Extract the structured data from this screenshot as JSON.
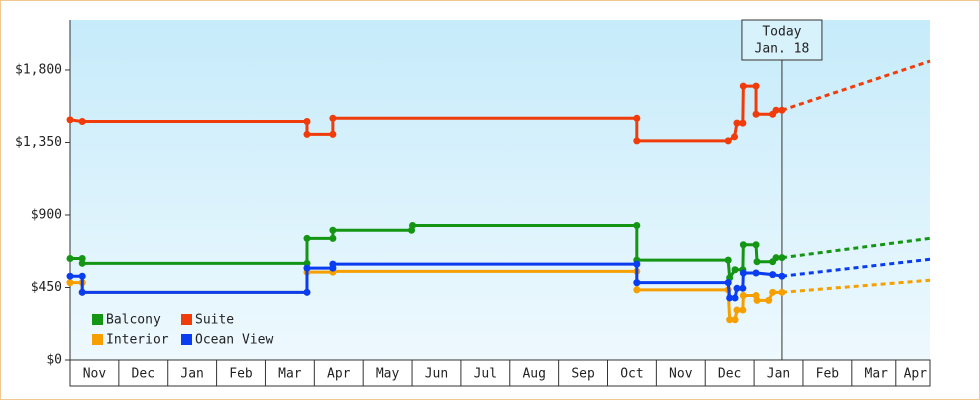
{
  "chart_data": {
    "type": "step-line",
    "ylim": [
      0,
      2110
    ],
    "yticks": [
      {
        "value": 0,
        "label": "$0"
      },
      {
        "value": 450,
        "label": "$450"
      },
      {
        "value": 900,
        "label": "$900"
      },
      {
        "value": 1350,
        "label": "$1,350"
      },
      {
        "value": 1800,
        "label": "$1,800"
      }
    ],
    "xlim": [
      0,
      17.6
    ],
    "xticks": [
      {
        "value": 0.5,
        "label": "Nov"
      },
      {
        "value": 1.5,
        "label": "Dec"
      },
      {
        "value": 2.5,
        "label": "Jan"
      },
      {
        "value": 3.5,
        "label": "Feb"
      },
      {
        "value": 4.5,
        "label": "Mar"
      },
      {
        "value": 5.5,
        "label": "Apr"
      },
      {
        "value": 6.5,
        "label": "May"
      },
      {
        "value": 7.5,
        "label": "Jun"
      },
      {
        "value": 8.5,
        "label": "Jul"
      },
      {
        "value": 9.5,
        "label": "Aug"
      },
      {
        "value": 10.5,
        "label": "Sep"
      },
      {
        "value": 11.5,
        "label": "Oct"
      },
      {
        "value": 12.5,
        "label": "Nov"
      },
      {
        "value": 13.5,
        "label": "Dec"
      },
      {
        "value": 14.5,
        "label": "Jan"
      },
      {
        "value": 15.5,
        "label": "Feb"
      },
      {
        "value": 16.5,
        "label": "Mar"
      },
      {
        "value": 17.3,
        "label": "Apr"
      }
    ],
    "legend": "lower left",
    "annotation": {
      "x": 14.57,
      "lines": [
        "Today",
        "Jan. 18"
      ]
    },
    "series": [
      {
        "name": "Balcony",
        "color": "#149614",
        "x": [
          0,
          0.25,
          0.25,
          4.85,
          4.85,
          5.38,
          5.38,
          6.99,
          7.01,
          11.6,
          11.6,
          13.47,
          13.5,
          13.61,
          13.77,
          13.78,
          14.04,
          14.06,
          14.38,
          14.45,
          14.57
        ],
        "values": [
          630,
          630,
          600,
          600,
          755,
          755,
          805,
          805,
          835,
          835,
          620,
          620,
          510,
          560,
          560,
          715,
          715,
          610,
          610,
          635,
          635
        ],
        "forecast_x": [
          14.57,
          17.6
        ],
        "forecast_values": [
          635,
          755
        ]
      },
      {
        "name": "Suite",
        "color": "#f03c0a",
        "x": [
          0,
          0.25,
          4.85,
          4.85,
          5.38,
          5.38,
          11.6,
          11.6,
          13.47,
          13.6,
          13.65,
          13.77,
          13.78,
          14.04,
          14.04,
          14.38,
          14.45,
          14.57
        ],
        "values": [
          1490,
          1480,
          1480,
          1400,
          1400,
          1500,
          1500,
          1360,
          1360,
          1385,
          1470,
          1470,
          1700,
          1700,
          1525,
          1525,
          1550,
          1550
        ],
        "forecast_x": [
          14.57,
          17.6
        ],
        "forecast_values": [
          1550,
          1855
        ]
      },
      {
        "name": "Interior",
        "color": "#f5a000",
        "x": [
          0,
          0.25,
          0.25,
          4.85,
          4.85,
          5.38,
          5.38,
          11.6,
          11.6,
          13.47,
          13.5,
          13.61,
          13.65,
          13.77,
          13.78,
          14.04,
          14.06,
          14.3,
          14.38,
          14.57
        ],
        "values": [
          480,
          480,
          420,
          420,
          545,
          545,
          550,
          550,
          435,
          435,
          250,
          250,
          310,
          310,
          400,
          400,
          370,
          370,
          420,
          420
        ],
        "forecast_x": [
          14.57,
          17.6
        ],
        "forecast_values": [
          420,
          495
        ]
      },
      {
        "name": "Ocean View",
        "color": "#0a3cf0",
        "x": [
          0,
          0.25,
          0.25,
          4.85,
          4.85,
          5.38,
          5.38,
          11.6,
          11.6,
          13.47,
          13.5,
          13.61,
          13.65,
          13.77,
          13.78,
          14.04,
          14.38,
          14.57
        ],
        "values": [
          520,
          520,
          420,
          420,
          570,
          570,
          595,
          595,
          480,
          480,
          385,
          385,
          445,
          445,
          540,
          540,
          530,
          520
        ],
        "forecast_x": [
          14.57,
          17.6
        ],
        "forecast_values": [
          520,
          625
        ]
      }
    ]
  }
}
